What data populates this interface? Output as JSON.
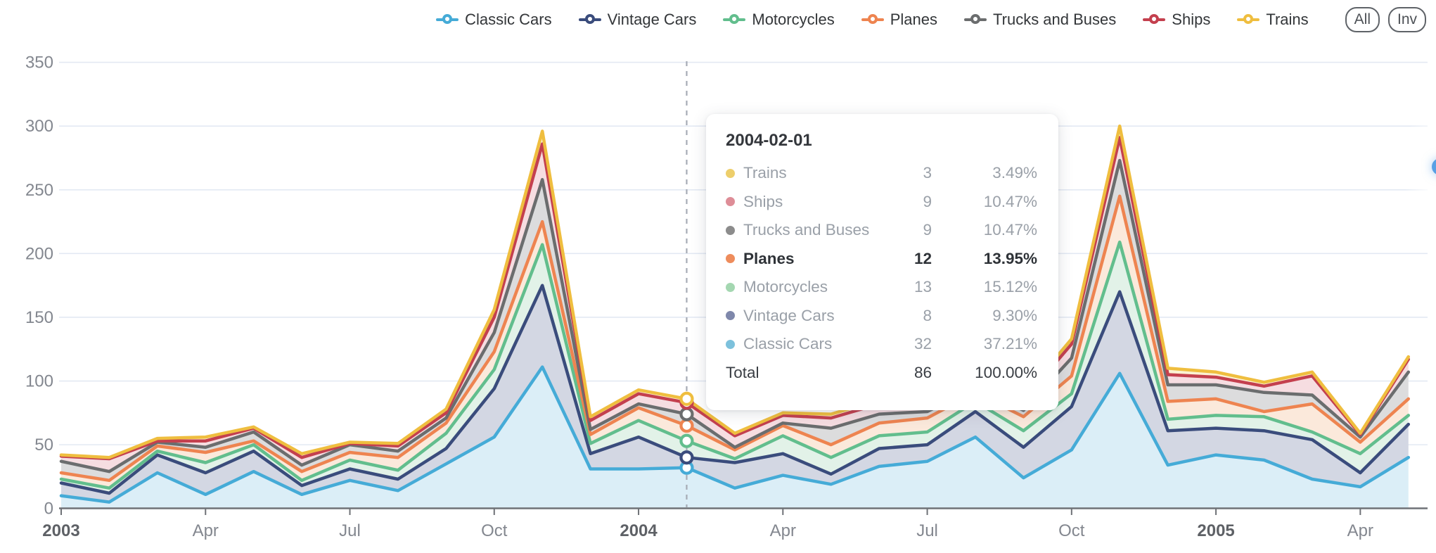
{
  "legend": {
    "items": [
      {
        "label": "Classic Cars",
        "color": "#45ABD7"
      },
      {
        "label": "Vintage Cars",
        "color": "#3A4C7C"
      },
      {
        "label": "Motorcycles",
        "color": "#62BE8D"
      },
      {
        "label": "Planes",
        "color": "#EE8450"
      },
      {
        "label": "Trucks and Buses",
        "color": "#6B6D6E"
      },
      {
        "label": "Ships",
        "color": "#C4404E"
      },
      {
        "label": "Trains",
        "color": "#EFBE3F"
      }
    ],
    "buttons": [
      {
        "label": "All"
      },
      {
        "label": "Inv"
      }
    ]
  },
  "chart_data": {
    "type": "area",
    "stacked": true,
    "grid": "horizontal",
    "legend_position": "top",
    "ylim": [
      0,
      350
    ],
    "yticks": [
      0,
      50,
      100,
      150,
      200,
      250,
      300,
      350
    ],
    "x": [
      "2003-01",
      "2003-02",
      "2003-03",
      "2003-04",
      "2003-05",
      "2003-06",
      "2003-07",
      "2003-08",
      "2003-09",
      "2003-10",
      "2003-11",
      "2003-12",
      "2004-01",
      "2004-02",
      "2004-03",
      "2004-04",
      "2004-05",
      "2004-06",
      "2004-07",
      "2004-08",
      "2004-09",
      "2004-10",
      "2004-11",
      "2004-12",
      "2005-01",
      "2005-02",
      "2005-03",
      "2005-04",
      "2005-05"
    ],
    "xticks": [
      {
        "index": 0,
        "label": "2003",
        "bold": true
      },
      {
        "index": 3,
        "label": "Apr",
        "bold": false
      },
      {
        "index": 6,
        "label": "Jul",
        "bold": false
      },
      {
        "index": 9,
        "label": "Oct",
        "bold": false
      },
      {
        "index": 12,
        "label": "2004",
        "bold": true
      },
      {
        "index": 15,
        "label": "Apr",
        "bold": false
      },
      {
        "index": 18,
        "label": "Jul",
        "bold": false
      },
      {
        "index": 21,
        "label": "Oct",
        "bold": false
      },
      {
        "index": 24,
        "label": "2005",
        "bold": true
      },
      {
        "index": 27,
        "label": "Apr",
        "bold": false
      }
    ],
    "series": [
      {
        "name": "Classic Cars",
        "color": "#45ABD7",
        "fill": "#DBEEF7",
        "values": [
          10,
          5,
          28,
          11,
          29,
          11,
          22,
          14,
          35,
          56,
          111,
          31,
          31,
          32,
          16,
          26,
          19,
          33,
          37,
          56,
          24,
          46,
          106,
          34,
          42,
          38,
          23,
          17,
          40
        ]
      },
      {
        "name": "Vintage Cars",
        "color": "#3A4C7C",
        "fill": "#D3D7E3",
        "values": [
          10,
          7,
          14,
          17,
          16,
          7,
          9,
          9,
          12,
          38,
          64,
          12,
          25,
          8,
          20,
          17,
          8,
          14,
          13,
          20,
          24,
          34,
          64,
          27,
          21,
          23,
          31,
          11,
          26
        ]
      },
      {
        "name": "Motorcycles",
        "color": "#62BE8D",
        "fill": "#E2F2E8",
        "values": [
          3,
          4,
          3,
          8,
          5,
          4,
          7,
          7,
          12,
          15,
          32,
          8,
          13,
          13,
          3,
          14,
          13,
          10,
          10,
          8,
          13,
          10,
          39,
          9,
          10,
          11,
          6,
          15,
          7
        ]
      },
      {
        "name": "Planes",
        "color": "#EE8450",
        "fill": "#FBE9DB",
        "values": [
          5,
          6,
          4,
          8,
          3,
          7,
          6,
          10,
          8,
          14,
          18,
          7,
          10,
          12,
          7,
          8,
          10,
          10,
          11,
          7,
          11,
          14,
          36,
          14,
          13,
          4,
          22,
          9,
          13
        ]
      },
      {
        "name": "Trucks and Buses",
        "color": "#6B6D6E",
        "fill": "#DCDCDD",
        "values": [
          9,
          7,
          3,
          4,
          7,
          5,
          6,
          5,
          4,
          15,
          33,
          4,
          3,
          9,
          2,
          2,
          13,
          7,
          5,
          4,
          5,
          14,
          28,
          13,
          11,
          15,
          7,
          4,
          21
        ]
      },
      {
        "name": "Ships",
        "color": "#C4404E",
        "fill": "#F6DDE1",
        "values": [
          4,
          10,
          1,
          5,
          3,
          6,
          1,
          4,
          4,
          12,
          28,
          7,
          8,
          9,
          9,
          6,
          8,
          8,
          9,
          6,
          8,
          11,
          18,
          8,
          6,
          5,
          15,
          2,
          10
        ]
      },
      {
        "name": "Trains",
        "color": "#EFBE3F",
        "fill": "#FBF2D2",
        "values": [
          1,
          1,
          2,
          3,
          1,
          3,
          1,
          2,
          3,
          6,
          10,
          3,
          3,
          3,
          2,
          2,
          3,
          3,
          3,
          2,
          3,
          4,
          9,
          5,
          4,
          3,
          3,
          1,
          2
        ]
      }
    ],
    "highlight": {
      "index": 13,
      "date": "2004-02-01"
    }
  },
  "tooltip": {
    "title": "2004-02-01",
    "rows": [
      {
        "name": "Trains",
        "value": "3",
        "pct": "3.49%",
        "color": "#EDCE6B",
        "bold": false
      },
      {
        "name": "Ships",
        "value": "9",
        "pct": "10.47%",
        "color": "#DE8D97",
        "bold": false
      },
      {
        "name": "Trucks and Buses",
        "value": "9",
        "pct": "10.47%",
        "color": "#8C8C8C",
        "bold": false
      },
      {
        "name": "Planes",
        "value": "12",
        "pct": "13.95%",
        "color": "#EE8C5C",
        "bold": true
      },
      {
        "name": "Motorcycles",
        "value": "13",
        "pct": "15.12%",
        "color": "#A4D7B1",
        "bold": false
      },
      {
        "name": "Vintage Cars",
        "value": "8",
        "pct": "9.30%",
        "color": "#7F88AB",
        "bold": false
      },
      {
        "name": "Classic Cars",
        "value": "32",
        "pct": "37.21%",
        "color": "#7DC1DC",
        "bold": false
      }
    ],
    "total": {
      "name": "Total",
      "value": "86",
      "pct": "100.00%"
    }
  },
  "colors": {
    "gridline": "#E3E9F3",
    "axis_line": "#6F7277",
    "tick_label": "#83878F",
    "year_label": "#5E6166",
    "hover_line": "#A6ABB5",
    "edge_button": "#58A0E4"
  }
}
